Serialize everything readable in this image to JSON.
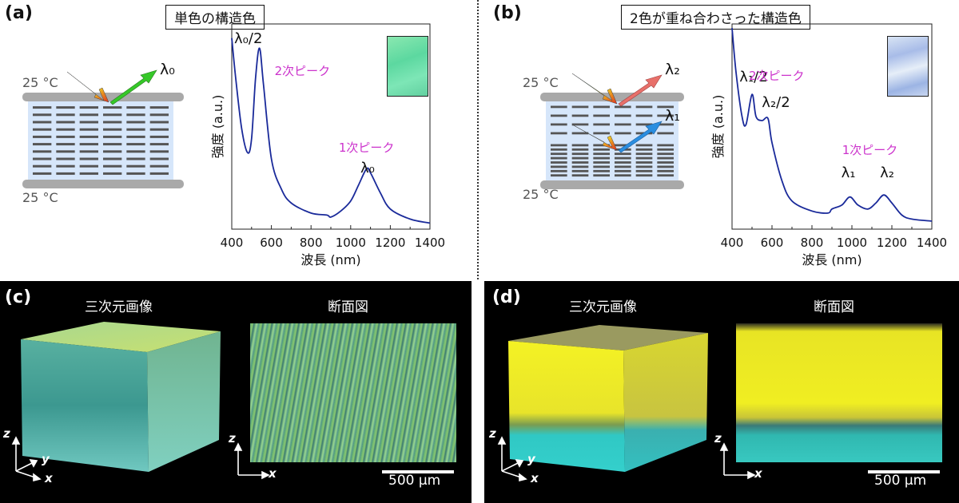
{
  "panels": {
    "a": {
      "label": "(a)",
      "title": "単色の構造色",
      "temp_top": "25 °C",
      "temp_bottom": "25 °C",
      "reflect_label": "λ₀"
    },
    "b": {
      "label": "(b)",
      "title": "2色が重ね合わさった構造色",
      "temp_top": "25 °C",
      "temp_bottom": "25 °C",
      "reflect_label_1": "λ₂",
      "reflect_label_2": "λ₁"
    },
    "c": {
      "label": "(c)",
      "caption_3d": "三次元画像",
      "caption_section": "断面図",
      "scalebar": "500 μm"
    },
    "d": {
      "label": "(d)",
      "caption_3d": "三次元画像",
      "caption_section": "断面図",
      "scalebar": "500 μm"
    }
  },
  "axes_labels": {
    "z": "z",
    "y": "y",
    "x": "x"
  },
  "colors": {
    "curve": "#1a2a9a",
    "peak_label": "#cc33cc",
    "cyan_green": "#6fd4b0",
    "yellow": "#f2f020",
    "cyan": "#30c8c8"
  },
  "chart_data": [
    {
      "type": "line",
      "xlabel": "波長 (nm)",
      "ylabel": "強度 (a.u.)",
      "xlim": [
        400,
        1400
      ],
      "xticks": [
        "400",
        "600",
        "800",
        "1000",
        "1200",
        "1400"
      ],
      "annotations": [
        {
          "text": "λ₀/2",
          "x": 540
        },
        {
          "text": "2次ピーク",
          "x": 600
        },
        {
          "text": "1次ピーク",
          "x": 1080
        },
        {
          "text": "λ₀",
          "x": 1085
        }
      ],
      "series": [
        {
          "x": [
            400,
            420,
            450,
            480,
            500,
            520,
            540,
            560,
            600,
            650,
            700,
            800,
            880,
            900,
            950,
            1000,
            1040,
            1080,
            1100,
            1150,
            1200,
            1300,
            1400
          ],
          "y": [
            0.95,
            0.75,
            0.5,
            0.38,
            0.45,
            0.75,
            0.9,
            0.72,
            0.35,
            0.2,
            0.13,
            0.08,
            0.07,
            0.06,
            0.09,
            0.14,
            0.22,
            0.3,
            0.28,
            0.18,
            0.1,
            0.05,
            0.03
          ]
        }
      ]
    },
    {
      "type": "line",
      "xlabel": "波長 (nm)",
      "ylabel": "強度 (a.u.)",
      "xlim": [
        400,
        1400
      ],
      "xticks": [
        "400",
        "600",
        "800",
        "1000",
        "1200",
        "1400"
      ],
      "annotations": [
        {
          "text": "λ₁/2",
          "x": 500
        },
        {
          "text": "2次ピーク",
          "x": 700
        },
        {
          "text": "λ₂/2",
          "x": 580
        },
        {
          "text": "1次ピーク",
          "x": 1090
        },
        {
          "text": "λ₁",
          "x": 990
        },
        {
          "text": "λ₂",
          "x": 1160
        }
      ],
      "series": [
        {
          "x": [
            400,
            420,
            450,
            470,
            500,
            520,
            550,
            580,
            600,
            650,
            700,
            800,
            880,
            900,
            950,
            990,
            1030,
            1080,
            1120,
            1160,
            1200,
            1250,
            1300,
            1400
          ],
          "y": [
            1.0,
            0.78,
            0.56,
            0.52,
            0.67,
            0.56,
            0.54,
            0.55,
            0.43,
            0.24,
            0.14,
            0.09,
            0.08,
            0.1,
            0.12,
            0.16,
            0.12,
            0.1,
            0.13,
            0.17,
            0.13,
            0.07,
            0.05,
            0.04
          ]
        }
      ]
    }
  ]
}
